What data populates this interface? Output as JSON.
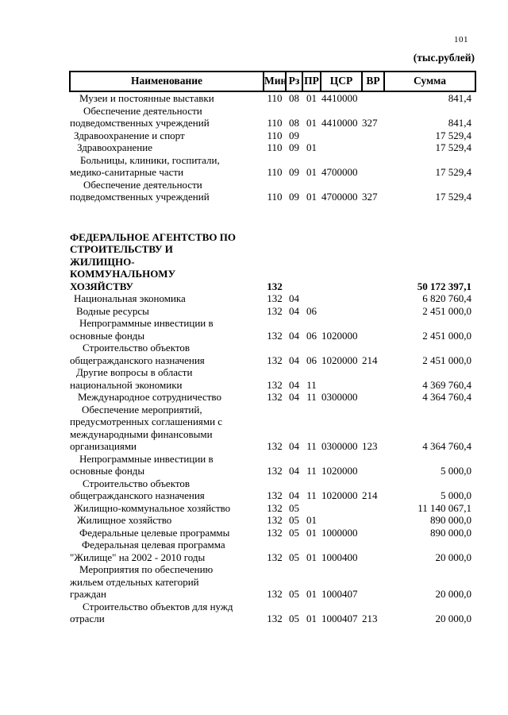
{
  "page": {
    "number": "101",
    "units_label": "(тыс.рублей)"
  },
  "table": {
    "headers": {
      "name": "Наименование",
      "min": "Мин",
      "rz": "Рз",
      "pr": "ПР",
      "csr": "ЦСР",
      "vr": "ВР",
      "sum": "Сумма"
    },
    "rows": [
      {
        "name": "Музеи и постоянные выставки",
        "min": "110",
        "rz": "08",
        "pr": "01",
        "csr": "4410000",
        "vr": "",
        "sum": "841,4",
        "indent": 12,
        "bold": false,
        "gap_before": false
      },
      {
        "name": "Обеспечение деятельности\nподведомственных учреждений",
        "min": "110",
        "rz": "08",
        "pr": "01",
        "csr": "4410000",
        "vr": "327",
        "sum": "841,4",
        "indent": 17,
        "bold": false,
        "gap_before": false
      },
      {
        "name": "Здравоохранение и спорт",
        "min": "110",
        "rz": "09",
        "pr": "",
        "csr": "",
        "vr": "",
        "sum": "17 529,4",
        "indent": 5,
        "bold": false,
        "gap_before": false
      },
      {
        "name": "Здравоохранение",
        "min": "110",
        "rz": "09",
        "pr": "01",
        "csr": "",
        "vr": "",
        "sum": "17 529,4",
        "indent": 9,
        "bold": false,
        "gap_before": false
      },
      {
        "name": "Больницы, клиники, госпитали,\nмедико-санитарные части",
        "min": "110",
        "rz": "09",
        "pr": "01",
        "csr": "4700000",
        "vr": "",
        "sum": "17 529,4",
        "indent": 13,
        "bold": false,
        "gap_before": false
      },
      {
        "name": "Обеспечение деятельности\nподведомственных учреждений",
        "min": "110",
        "rz": "09",
        "pr": "01",
        "csr": "4700000",
        "vr": "327",
        "sum": "17 529,4",
        "indent": 17,
        "bold": false,
        "gap_before": false
      },
      {
        "name": "ФЕДЕРАЛЬНОЕ АГЕНТСТВО ПО\nСТРОИТЕЛЬСТВУ И\nЖИЛИЩНО-\nКОММУНАЛЬНОМУ\nХОЗЯЙСТВУ",
        "min": "132",
        "rz": "",
        "pr": "",
        "csr": "",
        "vr": "",
        "sum": "50 172 397,1",
        "indent": 0,
        "bold": true,
        "gap_before": true
      },
      {
        "name": "Национальная экономика",
        "min": "132",
        "rz": "04",
        "pr": "",
        "csr": "",
        "vr": "",
        "sum": "6 820 760,4",
        "indent": 5,
        "bold": false,
        "gap_before": false
      },
      {
        "name": "Водные ресурсы",
        "min": "132",
        "rz": "04",
        "pr": "06",
        "csr": "",
        "vr": "",
        "sum": "2 451 000,0",
        "indent": 8,
        "bold": false,
        "gap_before": false
      },
      {
        "name": "Непрограммные  инвестиции в\nосновные фонды",
        "min": "132",
        "rz": "04",
        "pr": "06",
        "csr": "1020000",
        "vr": "",
        "sum": "2 451 000,0",
        "indent": 12,
        "bold": false,
        "gap_before": false
      },
      {
        "name": "Строительство объектов\nобщегражданского назначения",
        "min": "132",
        "rz": "04",
        "pr": "06",
        "csr": "1020000",
        "vr": "214",
        "sum": "2 451 000,0",
        "indent": 16,
        "bold": false,
        "gap_before": false
      },
      {
        "name": "Другие вопросы в области\nнациональной экономики",
        "min": "132",
        "rz": "04",
        "pr": "11",
        "csr": "",
        "vr": "",
        "sum": "4 369 760,4",
        "indent": 8,
        "bold": false,
        "gap_before": false
      },
      {
        "name": "Международное сотрудничество",
        "min": "132",
        "rz": "04",
        "pr": "11",
        "csr": "0300000",
        "vr": "",
        "sum": "4 364 760,4",
        "indent": 10,
        "bold": false,
        "gap_before": false
      },
      {
        "name": "Обеспечение мероприятий,\nпредусмотренных  соглашениями с\nмеждународными финансовыми\nорганизациями",
        "min": "132",
        "rz": "04",
        "pr": "11",
        "csr": "0300000",
        "vr": "123",
        "sum": "4 364 760,4",
        "indent": 15,
        "bold": false,
        "gap_before": false
      },
      {
        "name": "Непрограммные  инвестиции в\nосновные фонды",
        "min": "132",
        "rz": "04",
        "pr": "11",
        "csr": "1020000",
        "vr": "",
        "sum": "5 000,0",
        "indent": 12,
        "bold": false,
        "gap_before": false
      },
      {
        "name": "Строительство объектов\nобщегражданского назначения",
        "min": "132",
        "rz": "04",
        "pr": "11",
        "csr": "1020000",
        "vr": "214",
        "sum": "5 000,0",
        "indent": 16,
        "bold": false,
        "gap_before": false
      },
      {
        "name": "Жилищно-коммунальное хозяйство",
        "min": "132",
        "rz": "05",
        "pr": "",
        "csr": "",
        "vr": "",
        "sum": "11 140 067,1",
        "indent": 5,
        "bold": false,
        "gap_before": false
      },
      {
        "name": "Жилищное хозяйство",
        "min": "132",
        "rz": "05",
        "pr": "01",
        "csr": "",
        "vr": "",
        "sum": "890 000,0",
        "indent": 9,
        "bold": false,
        "gap_before": false
      },
      {
        "name": "Федеральные целевые программы",
        "min": "132",
        "rz": "05",
        "pr": "01",
        "csr": "1000000",
        "vr": "",
        "sum": "890 000,0",
        "indent": 12,
        "bold": false,
        "gap_before": false
      },
      {
        "name": "Федеральная целевая программа\n\"Жилище\" на 2002 - 2010 годы",
        "min": "132",
        "rz": "05",
        "pr": "01",
        "csr": "1000400",
        "vr": "",
        "sum": "20 000,0",
        "indent": 15,
        "bold": false,
        "gap_before": false
      },
      {
        "name": "Мероприятия по обеспечению\nжильем отдельных категорий\nграждан",
        "min": "132",
        "rz": "05",
        "pr": "01",
        "csr": "1000407",
        "vr": "",
        "sum": "20 000,0",
        "indent": 12,
        "bold": false,
        "gap_before": false
      },
      {
        "name": "Строительство объектов для нужд\nотрасли",
        "min": "132",
        "rz": "05",
        "pr": "01",
        "csr": "1000407",
        "vr": "213",
        "sum": "20 000,0",
        "indent": 16,
        "bold": false,
        "gap_before": false
      }
    ]
  }
}
